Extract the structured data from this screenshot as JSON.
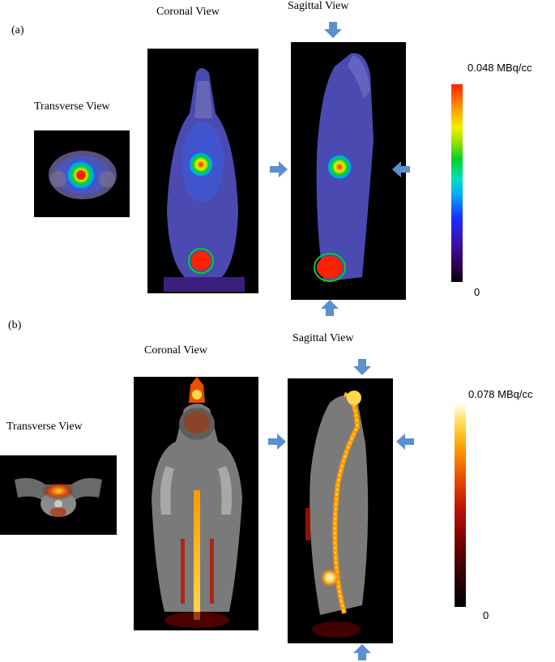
{
  "panel_a": {
    "tag": "(a)",
    "transverse_title": "Transverse View",
    "coronal_title": "Coronal View",
    "sagittal_title": "Sagittal View",
    "scale_max": "0.048 MBq/cc",
    "scale_min": "0",
    "colormap": "rainbow",
    "colors": {
      "hot": "#ff2000",
      "mid": "#00d02a",
      "cold": "#1c2cff"
    }
  },
  "panel_b": {
    "tag": "(b)",
    "transverse_title": "Transverse View",
    "coronal_title": "Coronal View",
    "sagittal_title": "Sagittal View",
    "scale_max": "0.078 MBq/cc",
    "scale_min": "0",
    "colormap": "hot",
    "colors": {
      "hot": "#ffffe8",
      "mid": "#ff9a00",
      "cold": "#6e0000"
    }
  },
  "arrows": {
    "color": "#5b8fcf",
    "icon": "block-arrow"
  }
}
